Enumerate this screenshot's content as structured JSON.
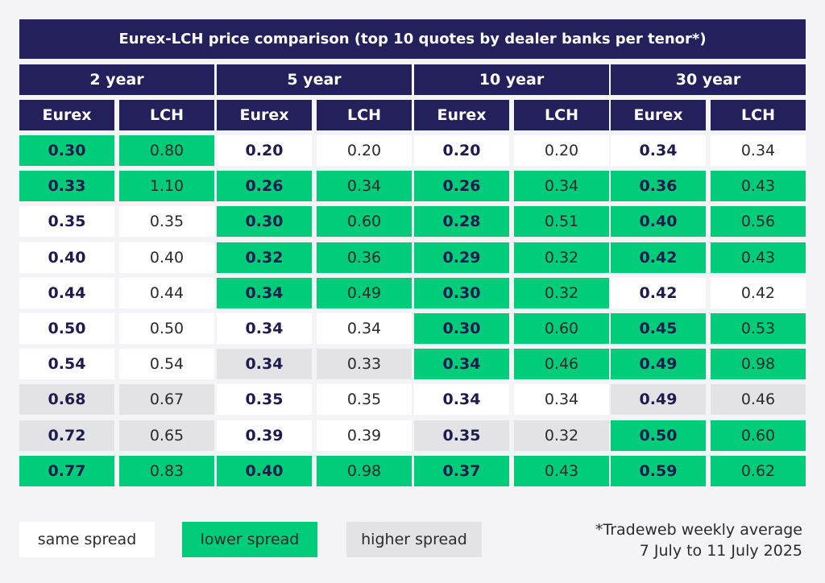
{
  "title": "Eurex-LCH price comparison (top 10 quotes by dealer banks per tenor*)",
  "colors": {
    "header_bg": "#23205c",
    "same_spread": "#ffffff",
    "lower_spread": "#00cc7a",
    "higher_spread": "#e3e3e5"
  },
  "column_labels": {
    "eurex": "Eurex",
    "lch": "LCH"
  },
  "tenors": [
    {
      "label": "2 year",
      "rows": [
        {
          "eurex": "0.30",
          "lch": "0.80",
          "status": "lower"
        },
        {
          "eurex": "0.33",
          "lch": "1.10",
          "status": "lower"
        },
        {
          "eurex": "0.35",
          "lch": "0.35",
          "status": "same"
        },
        {
          "eurex": "0.40",
          "lch": "0.40",
          "status": "same"
        },
        {
          "eurex": "0.44",
          "lch": "0.44",
          "status": "same"
        },
        {
          "eurex": "0.50",
          "lch": "0.50",
          "status": "same"
        },
        {
          "eurex": "0.54",
          "lch": "0.54",
          "status": "same"
        },
        {
          "eurex": "0.68",
          "lch": "0.67",
          "status": "higher"
        },
        {
          "eurex": "0.72",
          "lch": "0.65",
          "status": "higher"
        },
        {
          "eurex": "0.77",
          "lch": "0.83",
          "status": "lower"
        }
      ]
    },
    {
      "label": "5 year",
      "rows": [
        {
          "eurex": "0.20",
          "lch": "0.20",
          "status": "same"
        },
        {
          "eurex": "0.26",
          "lch": "0.34",
          "status": "lower"
        },
        {
          "eurex": "0.30",
          "lch": "0.60",
          "status": "lower"
        },
        {
          "eurex": "0.32",
          "lch": "0.36",
          "status": "lower"
        },
        {
          "eurex": "0.34",
          "lch": "0.49",
          "status": "lower"
        },
        {
          "eurex": "0.34",
          "lch": "0.34",
          "status": "same"
        },
        {
          "eurex": "0.34",
          "lch": "0.33",
          "status": "higher"
        },
        {
          "eurex": "0.35",
          "lch": "0.35",
          "status": "same"
        },
        {
          "eurex": "0.39",
          "lch": "0.39",
          "status": "same"
        },
        {
          "eurex": "0.40",
          "lch": "0.98",
          "status": "lower"
        }
      ]
    },
    {
      "label": "10 year",
      "rows": [
        {
          "eurex": "0.20",
          "lch": "0.20",
          "status": "same"
        },
        {
          "eurex": "0.26",
          "lch": "0.34",
          "status": "lower"
        },
        {
          "eurex": "0.28",
          "lch": "0.51",
          "status": "lower"
        },
        {
          "eurex": "0.29",
          "lch": "0.32",
          "status": "lower"
        },
        {
          "eurex": "0.30",
          "lch": "0.32",
          "status": "lower"
        },
        {
          "eurex": "0.30",
          "lch": "0.60",
          "status": "lower"
        },
        {
          "eurex": "0.34",
          "lch": "0.46",
          "status": "lower"
        },
        {
          "eurex": "0.34",
          "lch": "0.34",
          "status": "same"
        },
        {
          "eurex": "0.35",
          "lch": "0.32",
          "status": "higher"
        },
        {
          "eurex": "0.37",
          "lch": "0.43",
          "status": "lower"
        }
      ]
    },
    {
      "label": "30 year",
      "rows": [
        {
          "eurex": "0.34",
          "lch": "0.34",
          "status": "same"
        },
        {
          "eurex": "0.36",
          "lch": "0.43",
          "status": "lower"
        },
        {
          "eurex": "0.40",
          "lch": "0.56",
          "status": "lower"
        },
        {
          "eurex": "0.42",
          "lch": "0.43",
          "status": "lower"
        },
        {
          "eurex": "0.42",
          "lch": "0.42",
          "status": "same"
        },
        {
          "eurex": "0.45",
          "lch": "0.53",
          "status": "lower"
        },
        {
          "eurex": "0.49",
          "lch": "0.98",
          "status": "lower"
        },
        {
          "eurex": "0.49",
          "lch": "0.46",
          "status": "higher"
        },
        {
          "eurex": "0.50",
          "lch": "0.60",
          "status": "lower"
        },
        {
          "eurex": "0.59",
          "lch": "0.62",
          "status": "lower"
        }
      ]
    }
  ],
  "legend": {
    "same": "same spread",
    "lower": "lower spread",
    "higher": "higher spread"
  },
  "footnote": {
    "line1": "*Tradeweb weekly average",
    "line2": "7 July to 11 July 2025"
  }
}
